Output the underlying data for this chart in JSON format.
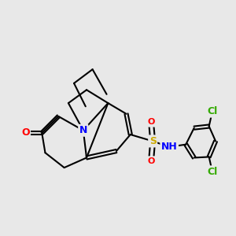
{
  "bg_color": "#e8e8e8",
  "bond_color": "#000000",
  "bond_width": 1.5,
  "dbo": 0.07,
  "atom_colors": {
    "O": "#ff0000",
    "N": "#0000ff",
    "S": "#ccaa00",
    "Cl": "#33aa00"
  },
  "fig_bg": "#e8e8e8"
}
